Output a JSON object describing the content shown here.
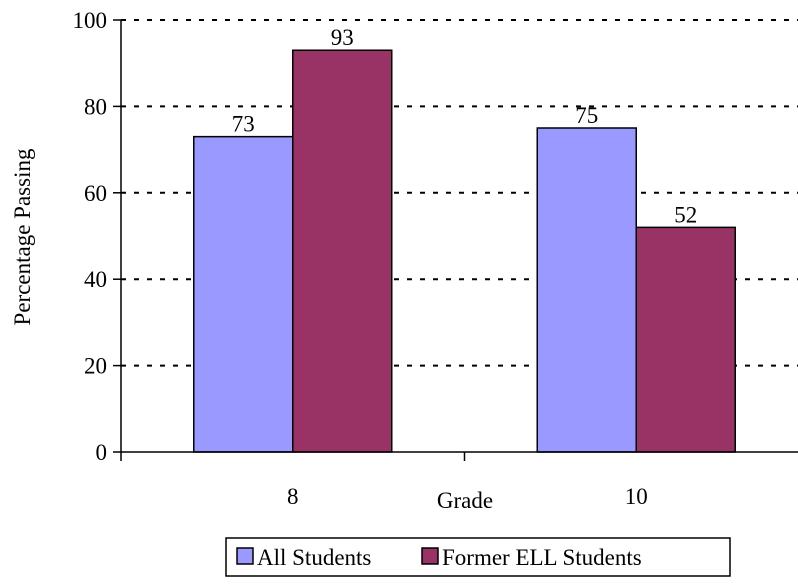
{
  "chart_data": {
    "type": "bar",
    "categories": [
      "8",
      "10"
    ],
    "series": [
      {
        "name": "All Students",
        "values": [
          73,
          75
        ],
        "color": "#9999FF"
      },
      {
        "name": "Former ELL Students",
        "values": [
          93,
          52
        ],
        "color": "#993366"
      }
    ],
    "xlabel": "Grade",
    "ylabel": "Percentage Passing",
    "ylim": [
      0,
      100
    ],
    "yticks": [
      "0",
      "20",
      "40",
      "60",
      "80",
      "100"
    ],
    "grid": true,
    "legend_position": "bottom"
  }
}
